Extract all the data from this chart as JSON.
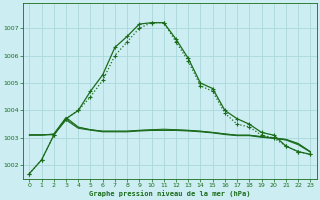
{
  "title": "Graphe pression niveau de la mer (hPa)",
  "background_color": "#cceef2",
  "grid_color": "#aad8dc",
  "line_color": "#1a6b1a",
  "xlim": [
    -0.5,
    23.5
  ],
  "ylim": [
    1001.5,
    1007.9
  ],
  "yticks": [
    1002,
    1003,
    1004,
    1005,
    1006,
    1007
  ],
  "xticks": [
    0,
    1,
    2,
    3,
    4,
    5,
    6,
    7,
    8,
    9,
    10,
    11,
    12,
    13,
    14,
    15,
    16,
    17,
    18,
    19,
    20,
    21,
    22,
    23
  ],
  "series_main1": [
    1001.7,
    1002.2,
    1003.1,
    1003.7,
    1004.0,
    1004.7,
    1005.3,
    1006.3,
    1006.7,
    1007.15,
    1007.2,
    1007.2,
    1006.6,
    1005.9,
    1005.0,
    1004.8,
    1004.0,
    1003.7,
    1003.5,
    1003.2,
    1003.1,
    1002.7,
    1002.5,
    1002.4
  ],
  "series_main2": [
    1001.7,
    1002.2,
    1003.1,
    1003.7,
    1004.0,
    1004.5,
    1005.1,
    1006.0,
    1006.5,
    1007.0,
    1007.2,
    1007.2,
    1006.5,
    1005.8,
    1004.9,
    1004.7,
    1003.9,
    1003.5,
    1003.4,
    1003.1,
    1003.0,
    1002.7,
    1002.5,
    1002.4
  ],
  "series_flat1": [
    1003.1,
    1003.1,
    1003.15,
    1003.75,
    1003.4,
    1003.3,
    1003.25,
    1003.25,
    1003.25,
    1003.28,
    1003.3,
    1003.32,
    1003.3,
    1003.28,
    1003.25,
    1003.2,
    1003.15,
    1003.1,
    1003.1,
    1003.05,
    1003.0,
    1002.95,
    1002.8,
    1002.5
  ],
  "series_flat2": [
    1003.1,
    1003.1,
    1003.12,
    1003.65,
    1003.35,
    1003.28,
    1003.22,
    1003.22,
    1003.22,
    1003.25,
    1003.27,
    1003.27,
    1003.27,
    1003.25,
    1003.22,
    1003.18,
    1003.12,
    1003.08,
    1003.08,
    1003.02,
    1002.98,
    1002.92,
    1002.75,
    1002.48
  ],
  "series_flat3": [
    1003.12,
    1003.12,
    1003.12,
    1003.7,
    1003.38,
    1003.3,
    1003.24,
    1003.24,
    1003.24,
    1003.27,
    1003.29,
    1003.29,
    1003.29,
    1003.27,
    1003.24,
    1003.2,
    1003.14,
    1003.1,
    1003.1,
    1003.04,
    1003.0,
    1002.94,
    1002.78,
    1002.49
  ]
}
